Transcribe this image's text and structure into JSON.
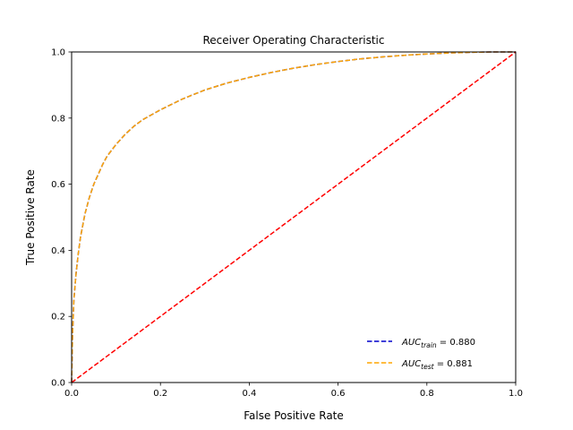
{
  "chart_data": {
    "type": "line",
    "title": "Receiver Operating Characteristic",
    "xlabel": "False Positive Rate",
    "ylabel": "True Positive Rate",
    "xlim": [
      0.0,
      1.0
    ],
    "ylim": [
      0.0,
      1.0
    ],
    "xticks": [
      "0.0",
      "0.2",
      "0.4",
      "0.6",
      "0.8",
      "1.0"
    ],
    "yticks": [
      "0.0",
      "0.2",
      "0.4",
      "0.6",
      "0.8",
      "1.0"
    ],
    "grid": false,
    "legend_position": "lower-right",
    "series": [
      {
        "name": "AUC_train = 0.880",
        "legend_main": "AUC",
        "legend_sub": "train",
        "legend_value": " = 0.880",
        "color": "#0000cc",
        "style": "dashed",
        "x": [
          0.0,
          0.002,
          0.005,
          0.01,
          0.015,
          0.02,
          0.03,
          0.04,
          0.05,
          0.06,
          0.07,
          0.08,
          0.1,
          0.12,
          0.14,
          0.16,
          0.18,
          0.2,
          0.25,
          0.3,
          0.35,
          0.4,
          0.45,
          0.5,
          0.55,
          0.6,
          0.65,
          0.7,
          0.75,
          0.8,
          0.85,
          0.9,
          0.95,
          1.0
        ],
        "y": [
          0.0,
          0.14,
          0.25,
          0.33,
          0.39,
          0.44,
          0.51,
          0.56,
          0.6,
          0.63,
          0.66,
          0.685,
          0.72,
          0.75,
          0.775,
          0.795,
          0.81,
          0.825,
          0.858,
          0.885,
          0.906,
          0.923,
          0.938,
          0.951,
          0.962,
          0.971,
          0.979,
          0.985,
          0.99,
          0.994,
          0.997,
          0.999,
          1.0,
          1.0
        ]
      },
      {
        "name": "AUC_test = 0.881",
        "legend_main": "AUC",
        "legend_sub": "test",
        "legend_value": " = 0.881",
        "color": "#ffa500",
        "style": "dashed",
        "x": [
          0.0,
          0.002,
          0.005,
          0.01,
          0.015,
          0.02,
          0.03,
          0.04,
          0.05,
          0.06,
          0.07,
          0.08,
          0.1,
          0.12,
          0.14,
          0.16,
          0.18,
          0.2,
          0.25,
          0.3,
          0.35,
          0.4,
          0.45,
          0.5,
          0.55,
          0.6,
          0.65,
          0.7,
          0.75,
          0.8,
          0.85,
          0.9,
          0.95,
          1.0
        ],
        "y": [
          0.0,
          0.14,
          0.25,
          0.33,
          0.39,
          0.44,
          0.51,
          0.56,
          0.6,
          0.63,
          0.66,
          0.685,
          0.72,
          0.75,
          0.775,
          0.795,
          0.81,
          0.825,
          0.858,
          0.885,
          0.906,
          0.923,
          0.938,
          0.951,
          0.962,
          0.971,
          0.979,
          0.985,
          0.99,
          0.994,
          0.997,
          0.999,
          1.0,
          1.0
        ]
      }
    ],
    "reference_line": {
      "x": [
        0.0,
        1.0
      ],
      "y": [
        0.0,
        1.0
      ],
      "color": "#ff0000",
      "style": "dashed"
    }
  }
}
